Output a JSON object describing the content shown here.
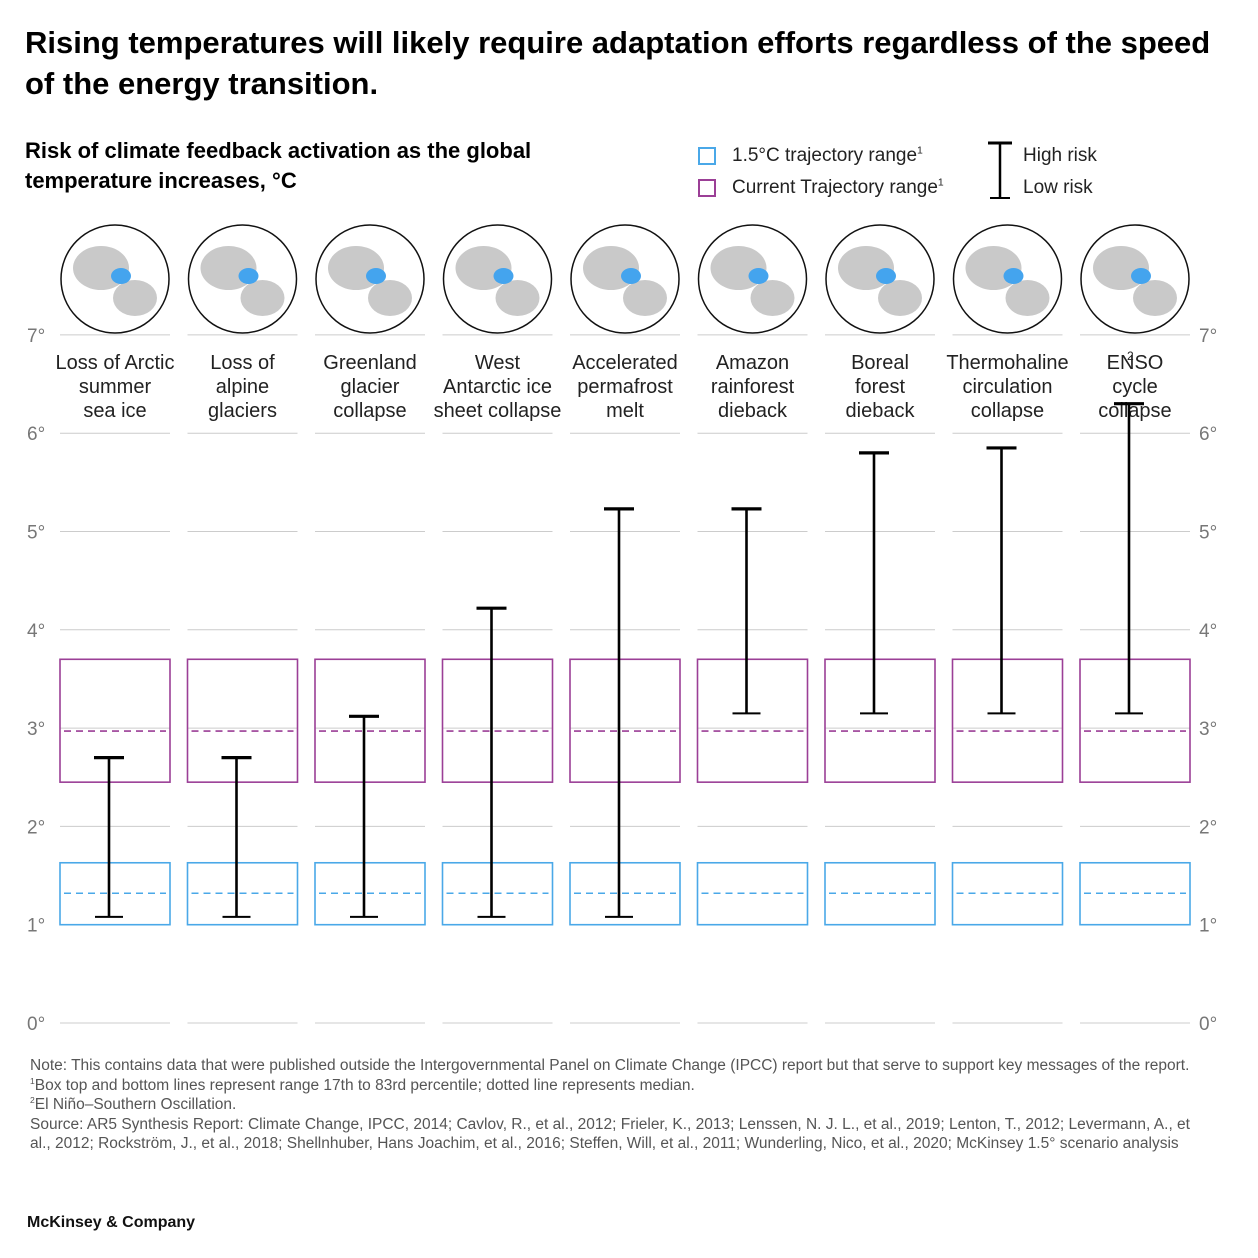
{
  "title": "Rising temperatures will likely require adaptation efforts regardless of the speed of the energy transition.",
  "subtitle": "Risk of climate feedback activation as the global temperature increases, °C",
  "legend": {
    "range15": "1.5°C trajectory range",
    "range15_sup": "1",
    "current": "Current Trajectory range",
    "current_sup": "1",
    "high": "High risk",
    "low": "Low risk"
  },
  "colors": {
    "blue": "#4aa8e8",
    "purple": "#9b3f96",
    "grid": "#cccccc",
    "axis_text": "#777777",
    "whisker": "#000000",
    "globe_land": "#c9c9c9",
    "globe_highlight": "#44a4ee"
  },
  "notes": {
    "note": "Note: This contains data that were published outside the Intergovernmental Panel on Climate Change (IPCC) report but that serve to support key messages of the report.",
    "fn1_mark": "1",
    "fn1": "Box top and bottom lines represent range 17th to 83rd percentile; dotted line represents median.",
    "fn2_mark": "2",
    "fn2": "El Niño–Southern Oscillation.",
    "source": "Source: AR5 Synthesis Report: Climate Change, IPCC, 2014; Cavlov, R., et al., 2012; Frieler, K., 2013; Lenssen, N. J. L., et al., 2019; Lenton, T., 2012; Levermann, A., et al., 2012; Rockström, J., et al., 2018; Shellnhuber, Hans Joachim, et al., 2016; Steffen, Will, et al., 2011; Wunderling, Nico, et al., 2020; McKinsey 1.5° scenario analysis"
  },
  "brand": "McKinsey & Company",
  "chart_data": {
    "type": "box-and-whisker",
    "title": "Risk of climate feedback activation as the global temperature increases, °C",
    "y_unit": "°C",
    "ylim": [
      0,
      7
    ],
    "yticks": [
      "0°",
      "1°",
      "2°",
      "3°",
      "4°",
      "5°",
      "6°",
      "7°"
    ],
    "ytick_values": [
      0,
      1,
      2,
      3,
      4,
      5,
      6,
      7
    ],
    "trajectory_15": {
      "low": 1.0,
      "median": 1.32,
      "high": 1.63
    },
    "trajectory_current": {
      "low": 2.45,
      "median": 2.97,
      "high": 3.7
    },
    "categories": [
      {
        "lines": [
          "Loss of Arctic",
          "summer",
          "sea ice"
        ],
        "low_risk": 1.08,
        "high_risk": 2.7
      },
      {
        "lines": [
          "Loss of",
          "alpine",
          "glaciers"
        ],
        "low_risk": 1.08,
        "high_risk": 2.7
      },
      {
        "lines": [
          "Greenland",
          "glacier",
          "collapse"
        ],
        "low_risk": 1.08,
        "high_risk": 3.12
      },
      {
        "lines": [
          "West",
          "Antarctic ice",
          "sheet collapse"
        ],
        "low_risk": 1.08,
        "high_risk": 4.22
      },
      {
        "lines": [
          "Accelerated",
          "permafrost",
          "melt"
        ],
        "low_risk": 1.08,
        "high_risk": 5.23
      },
      {
        "lines": [
          "Amazon",
          "rainforest",
          "dieback"
        ],
        "low_risk": 3.15,
        "high_risk": 5.23
      },
      {
        "lines": [
          "Boreal",
          "forest",
          "dieback"
        ],
        "low_risk": 3.15,
        "high_risk": 5.8
      },
      {
        "lines": [
          "Thermohaline",
          "circulation",
          "collapse"
        ],
        "low_risk": 3.15,
        "high_risk": 5.85
      },
      {
        "lines": [
          "ENSO",
          "cycle",
          "collapse"
        ],
        "lines_note": "ENSO carries footnote 2 superscript",
        "sup": "2",
        "low_risk": 3.15,
        "high_risk": 6.3
      }
    ]
  }
}
